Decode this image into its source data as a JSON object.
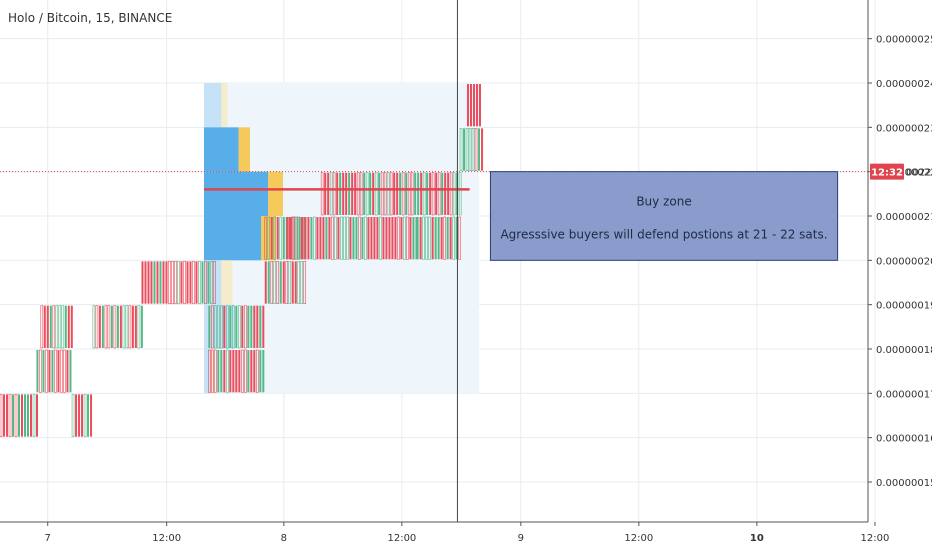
{
  "title": "Holo / Bitcoin, 15, BINANCE",
  "colors": {
    "up": "#53b987",
    "down": "#eb4d5c",
    "grid": "#e6ecf2",
    "axis": "#555555",
    "price_line": "#e0454f",
    "zone_fill": "#8a9ccc",
    "zone_stroke": "#2c3e78",
    "profile_main": "#57aee9",
    "profile_light": "#c6e2f7",
    "profile_yellow": "#f5c95a",
    "profile_yellow_light": "#f5eccc",
    "profile_area": "#eef6fc",
    "poc": "#e0454f"
  },
  "price_badge": {
    "label": "12:32",
    "value": 2.2e-07
  },
  "annotation": {
    "line1": "Buy zone",
    "line2": "Agresssive buyers will defend postions at 21 - 22 sats."
  },
  "chart_data": {
    "type": "candlestick",
    "title": "Holo / Bitcoin, 15, BINANCE",
    "y_ticks": [
      {
        "value": 1.5e-07,
        "label": "0.00000015"
      },
      {
        "value": 1.6e-07,
        "label": "0.00000016"
      },
      {
        "value": 1.7e-07,
        "label": "0.00000017"
      },
      {
        "value": 1.8e-07,
        "label": "0.00000018"
      },
      {
        "value": 1.9e-07,
        "label": "0.00000019"
      },
      {
        "value": 2e-07,
        "label": "0.00000020"
      },
      {
        "value": 2.1e-07,
        "label": "0.00000021"
      },
      {
        "value": 2.2e-07,
        "label": "0.00000022"
      },
      {
        "value": 2.3e-07,
        "label": "0.00000023"
      },
      {
        "value": 2.4e-07,
        "label": "0.00000024"
      },
      {
        "value": 2.5e-07,
        "label": "0.00000025"
      }
    ],
    "x_ticks": [
      {
        "label": "7",
        "pos": 0.055,
        "bold": false
      },
      {
        "label": "12:00",
        "pos": 0.192,
        "bold": false
      },
      {
        "label": "8",
        "pos": 0.327,
        "bold": false
      },
      {
        "label": "12:00",
        "pos": 0.463,
        "bold": false
      },
      {
        "label": "9",
        "pos": 0.6,
        "bold": false
      },
      {
        "label": "12:00",
        "pos": 0.736,
        "bold": false
      },
      {
        "label": "10",
        "pos": 0.872,
        "bold": true
      },
      {
        "label": "12:00",
        "pos": 1.008,
        "bold": false
      }
    ],
    "current_price": 2.2e-07,
    "candle_segments": [
      {
        "x0": 0.0,
        "x1": 0.042,
        "level": 1.65e-07
      },
      {
        "x0": 0.042,
        "x1": 0.083,
        "level": 1.75e-07
      },
      {
        "x0": 0.083,
        "x1": 0.105,
        "level": 1.65e-07
      },
      {
        "x0": 0.047,
        "x1": 0.085,
        "level": 1.85e-07
      },
      {
        "x0": 0.107,
        "x1": 0.163,
        "level": 1.85e-07
      },
      {
        "x0": 0.163,
        "x1": 0.248,
        "level": 1.95e-07
      },
      {
        "x0": 0.24,
        "x1": 0.305,
        "level": 1.85e-07
      },
      {
        "x0": 0.24,
        "x1": 0.305,
        "level": 1.75e-07
      },
      {
        "x0": 0.305,
        "x1": 0.352,
        "level": 1.95e-07
      },
      {
        "x0": 0.305,
        "x1": 0.352,
        "level": 2.05e-07
      },
      {
        "x0": 0.33,
        "x1": 0.48,
        "level": 2.05e-07
      },
      {
        "x0": 0.37,
        "x1": 0.53,
        "level": 2.15e-07
      },
      {
        "x0": 0.48,
        "x1": 0.53,
        "level": 2.05e-07
      },
      {
        "x0": 0.53,
        "x1": 0.555,
        "level": 2.25e-07
      },
      {
        "x0": 0.538,
        "x1": 0.552,
        "level": 2.35e-07
      }
    ],
    "volume_profile": {
      "x_start": 0.235,
      "x_end": 0.552,
      "rows": [
        {
          "level": 2.35e-07,
          "main": 0.0,
          "light": 0.02,
          "yellow": 0.0,
          "yellow_light": 0.007
        },
        {
          "level": 2.25e-07,
          "main": 0.04,
          "light": 0.0,
          "yellow": 0.013,
          "yellow_light": 0.0
        },
        {
          "level": 2.15e-07,
          "main": 0.074,
          "light": 0.0,
          "yellow": 0.017,
          "yellow_light": 0.0
        },
        {
          "level": 2.05e-07,
          "main": 0.066,
          "light": 0.0,
          "yellow": 0.017,
          "yellow_light": 0.0
        },
        {
          "level": 1.95e-07,
          "main": 0.0,
          "light": 0.02,
          "yellow": 0.0,
          "yellow_light": 0.013
        },
        {
          "level": 1.85e-07,
          "main": 0.0,
          "light": 0.035,
          "yellow": 0.0,
          "yellow_light": 0.0
        },
        {
          "level": 1.75e-07,
          "main": 0.0,
          "light": 0.008,
          "yellow": 0.0,
          "yellow_light": 0.004
        }
      ],
      "poc_level": 2.16e-07
    },
    "buy_zone": {
      "x0": 0.565,
      "x1": 0.965,
      "y_top": 2.2e-07,
      "y_bottom": 2e-07
    },
    "crosshair_x": 0.527
  }
}
